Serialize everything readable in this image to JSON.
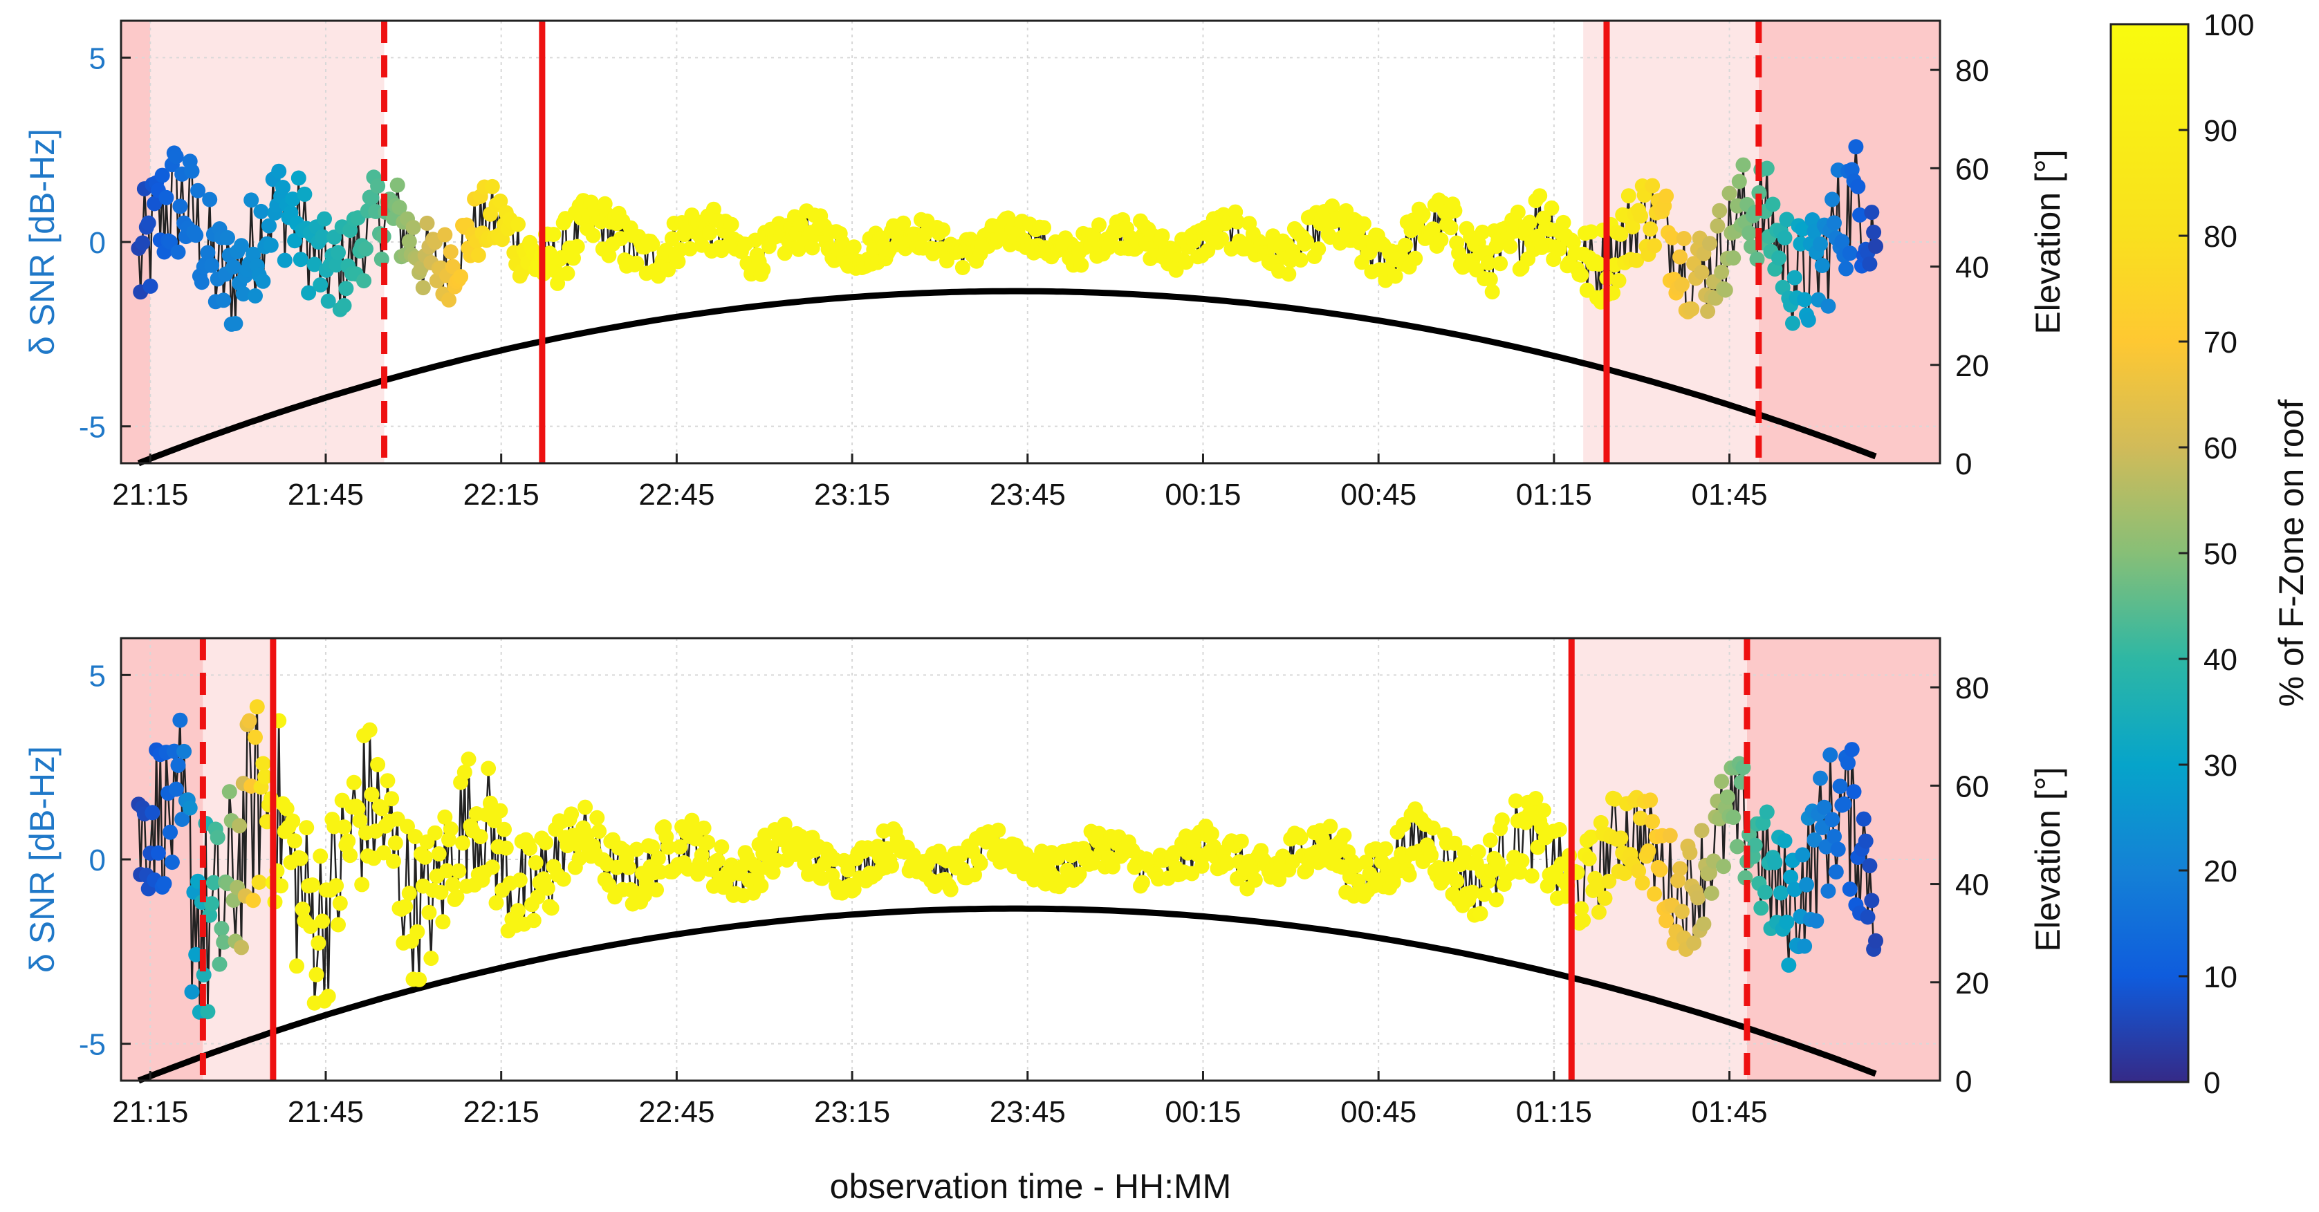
{
  "colors": {
    "severe_zone": "#fcc9c9",
    "transition_zone": "#fde6e6",
    "boundary_line": "#ee1111",
    "elevation_line": "#000000",
    "left_axis_text": "#1f78c8"
  },
  "colorbar": {
    "label": "% of F-Zone on roof",
    "ticks": [
      "0",
      "10",
      "20",
      "30",
      "40",
      "50",
      "60",
      "70",
      "80",
      "90",
      "100"
    ],
    "range": [
      0,
      100
    ],
    "colormap": "parula"
  },
  "xlabel": "observation time - HH:MM",
  "chart_data": [
    {
      "type": "scatter",
      "name": "top",
      "ylabel_left": "δ SNR [dB-Hz]",
      "ylabel_right": "Elevation [°]",
      "x_unit": "minutes after 21:15",
      "xlim": [
        -5,
        306
      ],
      "ylim_left": [
        -6,
        6
      ],
      "ylim_right": [
        0,
        90
      ],
      "x_ticks": [
        "21:15",
        "21:45",
        "22:15",
        "22:45",
        "23:15",
        "23:45",
        "00:15",
        "00:45",
        "01:15",
        "01:45"
      ],
      "y_ticks_left": [
        "-5",
        "0",
        "5"
      ],
      "y_ticks_right": [
        "0",
        "20",
        "40",
        "60",
        "80"
      ],
      "grid": true,
      "severe_zones": [
        [
          -5,
          0
        ],
        [
          275,
          306
        ]
      ],
      "transition_zones": [
        [
          0,
          40
        ],
        [
          245,
          275
        ]
      ],
      "dashed_lines": [
        40,
        275
      ],
      "solid_lines": [
        67,
        249
      ],
      "elevation": {
        "start": -2,
        "end": 295,
        "peak_time": 148,
        "peak": 35,
        "points": [
          [
            -2,
            0
          ],
          [
            40,
            13
          ],
          [
            67,
            23
          ],
          [
            100,
            30
          ],
          [
            148,
            35
          ],
          [
            200,
            30
          ],
          [
            249,
            23
          ],
          [
            275,
            13
          ],
          [
            295,
            0
          ]
        ]
      },
      "snr_series": {
        "start": -2,
        "end": 295,
        "count": 880,
        "amplitude": 1.1,
        "coverage_points": [
          [
            -2,
            5
          ],
          [
            5,
            15
          ],
          [
            20,
            25
          ],
          [
            40,
            45
          ],
          [
            55,
            75
          ],
          [
            67,
            96
          ],
          [
            249,
            96
          ],
          [
            258,
            75
          ],
          [
            275,
            45
          ],
          [
            290,
            15
          ],
          [
            295,
            5
          ]
        ]
      }
    },
    {
      "type": "scatter",
      "name": "bottom",
      "ylabel_left": "δ SNR [dB-Hz]",
      "ylabel_right": "Elevation [°]",
      "x_unit": "minutes after 21:15",
      "xlim": [
        -5,
        306
      ],
      "ylim_left": [
        -6,
        6
      ],
      "ylim_right": [
        0,
        90
      ],
      "x_ticks": [
        "21:15",
        "21:45",
        "22:15",
        "22:45",
        "23:15",
        "23:45",
        "00:15",
        "00:45",
        "01:15",
        "01:45"
      ],
      "y_ticks_left": [
        "-5",
        "0",
        "5"
      ],
      "y_ticks_right": [
        "0",
        "20",
        "40",
        "60",
        "80"
      ],
      "grid": true,
      "severe_zones": [
        [
          -5,
          9
        ],
        [
          273,
          306
        ]
      ],
      "transition_zones": [
        [
          9,
          21
        ],
        [
          243,
          273
        ]
      ],
      "dashed_lines": [
        9,
        273
      ],
      "solid_lines": [
        21,
        243
      ],
      "elevation": {
        "start": -2,
        "end": 295,
        "peak_time": 148,
        "peak": 35,
        "points": [
          [
            -2,
            0
          ],
          [
            9,
            4
          ],
          [
            21,
            8
          ],
          [
            100,
            30
          ],
          [
            148,
            35
          ],
          [
            200,
            30
          ],
          [
            243,
            21
          ],
          [
            273,
            13
          ],
          [
            295,
            0
          ]
        ]
      },
      "snr_series": {
        "start": -2,
        "end": 295,
        "count": 880,
        "amplitude": 1.3,
        "coverage_points": [
          [
            -2,
            5
          ],
          [
            5,
            15
          ],
          [
            9,
            35
          ],
          [
            15,
            55
          ],
          [
            21,
            95
          ],
          [
            243,
            96
          ],
          [
            250,
            85
          ],
          [
            262,
            65
          ],
          [
            273,
            45
          ],
          [
            285,
            20
          ],
          [
            295,
            5
          ]
        ]
      }
    }
  ]
}
